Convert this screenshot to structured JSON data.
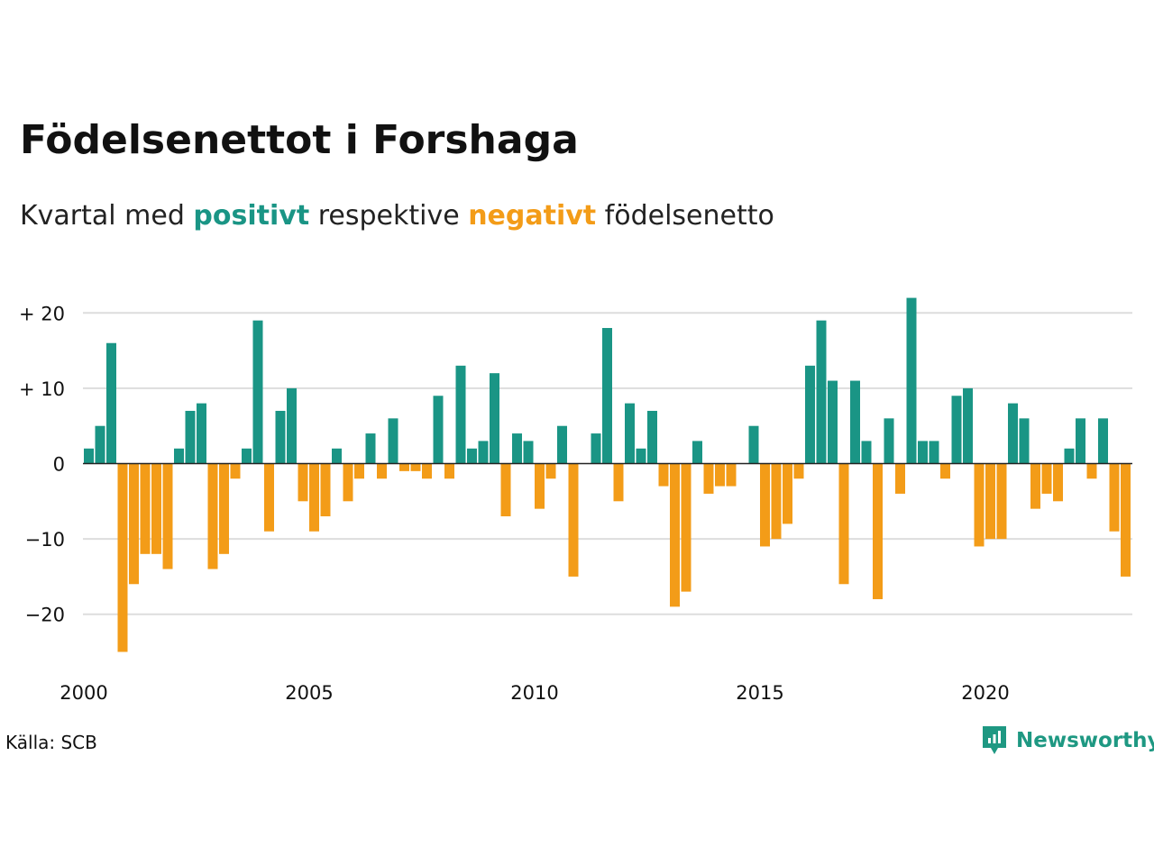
{
  "title": "Födelsenettot i Forshaga",
  "subtitle": {
    "part1": "Kvartal med ",
    "positive_word": "positivt",
    "part2": " respektive ",
    "negative_word": "negativt",
    "part3": " födelsenetto"
  },
  "source": "Källa: SCB",
  "brand": "Newsworthy",
  "colors": {
    "positive": "#1a9585",
    "negative": "#f39c18",
    "grid": "#dddddd",
    "zero_line": "#222222",
    "brand": "#1e9882"
  },
  "chart_data": {
    "type": "bar",
    "x_start": "2000 Q1",
    "x_ticks": [
      "2000",
      "2005",
      "2010",
      "2015",
      "2020"
    ],
    "y_ticks": [
      "+ 20",
      "+ 10",
      "0",
      "−10",
      "−20"
    ],
    "ylim": [
      -27,
      23
    ],
    "grid": true,
    "values": [
      2,
      5,
      16,
      -25,
      -16,
      -12,
      -12,
      -14,
      2,
      7,
      8,
      -14,
      -12,
      -2,
      2,
      19,
      -9,
      7,
      10,
      -5,
      -9,
      -7,
      2,
      -5,
      -2,
      4,
      -2,
      6,
      -1,
      -1,
      -2,
      9,
      -2,
      13,
      2,
      3,
      12,
      -7,
      4,
      3,
      -6,
      -2,
      5,
      -15,
      0,
      4,
      18,
      -5,
      8,
      2,
      7,
      -3,
      -19,
      -17,
      3,
      -4,
      -3,
      -3,
      0,
      5,
      -11,
      -10,
      -8,
      -2,
      13,
      19,
      11,
      -16,
      11,
      3,
      -18,
      6,
      -4,
      22,
      3,
      3,
      -2,
      9,
      10,
      -11,
      -10,
      -10,
      8,
      6,
      -6,
      -4,
      -5,
      2,
      6,
      -2,
      6,
      -9,
      -15
    ]
  }
}
